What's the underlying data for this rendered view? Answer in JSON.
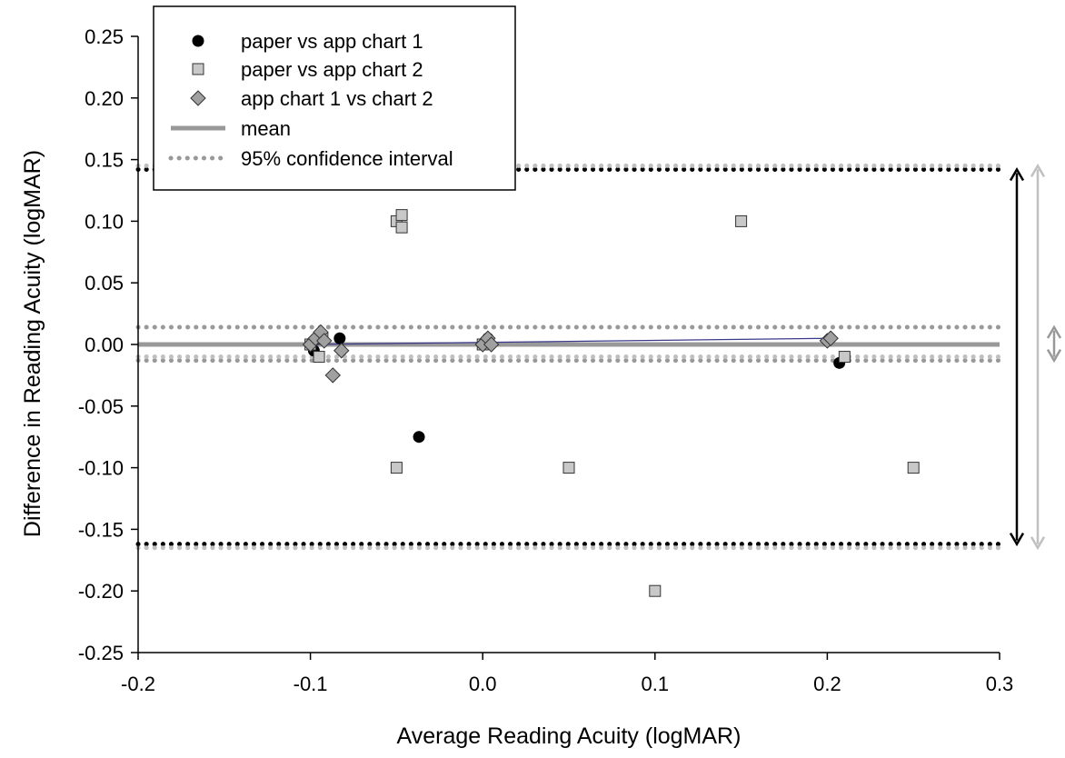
{
  "chart_data": {
    "type": "scatter",
    "xlabel": "Average Reading Acuity (logMAR)",
    "ylabel": "Difference in Reading Acuity (logMAR)",
    "xlim": [
      -0.2,
      0.3
    ],
    "ylim": [
      -0.25,
      0.25
    ],
    "x_ticks": [
      -0.2,
      -0.1,
      0.0,
      0.1,
      0.2,
      0.3
    ],
    "x_tick_labels": [
      "-0.2",
      "-0.1",
      "0.0",
      "0.1",
      "0.2",
      "0.3"
    ],
    "y_ticks": [
      0.25,
      0.2,
      0.15,
      0.1,
      0.05,
      0.0,
      -0.05,
      -0.1,
      -0.15,
      -0.2,
      -0.25
    ],
    "y_tick_labels": [
      "0.25",
      "0.20",
      "0.15",
      "0.10",
      "0.05",
      "0.00",
      "-0.05",
      "-0.10",
      "-0.15",
      "-0.20",
      "-0.25"
    ],
    "grid": false,
    "legend_position": "top-left",
    "series": [
      {
        "name": "paper vs app chart 1",
        "marker": "circle",
        "color": "#000000",
        "points": [
          [
            -0.1,
            0.0
          ],
          [
            -0.098,
            -0.005
          ],
          [
            -0.083,
            0.005
          ],
          [
            -0.037,
            -0.075
          ],
          [
            0.0,
            0.0
          ],
          [
            0.003,
            0.005
          ],
          [
            0.207,
            -0.015
          ]
        ]
      },
      {
        "name": "paper vs app chart 2",
        "marker": "square",
        "color": "#c8c8c8",
        "points": [
          [
            -0.1,
            0.0
          ],
          [
            -0.095,
            -0.01
          ],
          [
            -0.093,
            0.005
          ],
          [
            -0.05,
            0.1
          ],
          [
            -0.047,
            0.105
          ],
          [
            -0.047,
            0.095
          ],
          [
            -0.05,
            -0.1
          ],
          [
            0.0,
            0.0
          ],
          [
            0.05,
            -0.1
          ],
          [
            0.1,
            -0.2
          ],
          [
            0.15,
            0.1
          ],
          [
            0.21,
            -0.01
          ],
          [
            0.25,
            -0.1
          ]
        ]
      },
      {
        "name": "app chart 1 vs chart 2",
        "marker": "diamond",
        "color": "#a0a0a0",
        "points": [
          [
            -0.1,
            0.0
          ],
          [
            -0.097,
            0.005
          ],
          [
            -0.094,
            0.01
          ],
          [
            -0.092,
            0.003
          ],
          [
            -0.087,
            -0.025
          ],
          [
            -0.082,
            -0.005
          ],
          [
            0.0,
            0.0
          ],
          [
            0.003,
            0.005
          ],
          [
            0.005,
            0.0
          ],
          [
            0.2,
            0.003
          ],
          [
            0.202,
            0.005
          ]
        ]
      }
    ],
    "mean_line": {
      "name": "mean",
      "y": 0.0,
      "color": "#999999"
    },
    "regression_line": {
      "x": [
        -0.1,
        0.2
      ],
      "y": [
        0.0,
        0.005
      ],
      "color": "#3a3a8c"
    },
    "ci_label": "95% confidence interval",
    "confidence_lines": [
      {
        "y": 0.142,
        "color": "#000000"
      },
      {
        "y": -0.162,
        "color": "#000000"
      },
      {
        "y": 0.145,
        "color": "#c0c0c0"
      },
      {
        "y": -0.165,
        "color": "#c0c0c0"
      },
      {
        "y": 0.014,
        "color": "#999999"
      },
      {
        "y": -0.013,
        "color": "#999999"
      },
      {
        "y": -0.01,
        "color": "#c0c0c0"
      }
    ],
    "range_arrows": [
      {
        "x_offset": 0,
        "y_top": 0.142,
        "y_bottom": -0.162,
        "color": "#000000"
      },
      {
        "x_offset": 1,
        "y_top": 0.145,
        "y_bottom": -0.165,
        "color": "#c0c0c0"
      },
      {
        "x_offset": 2,
        "y_top": 0.014,
        "y_bottom": -0.013,
        "color": "#999999"
      }
    ]
  }
}
